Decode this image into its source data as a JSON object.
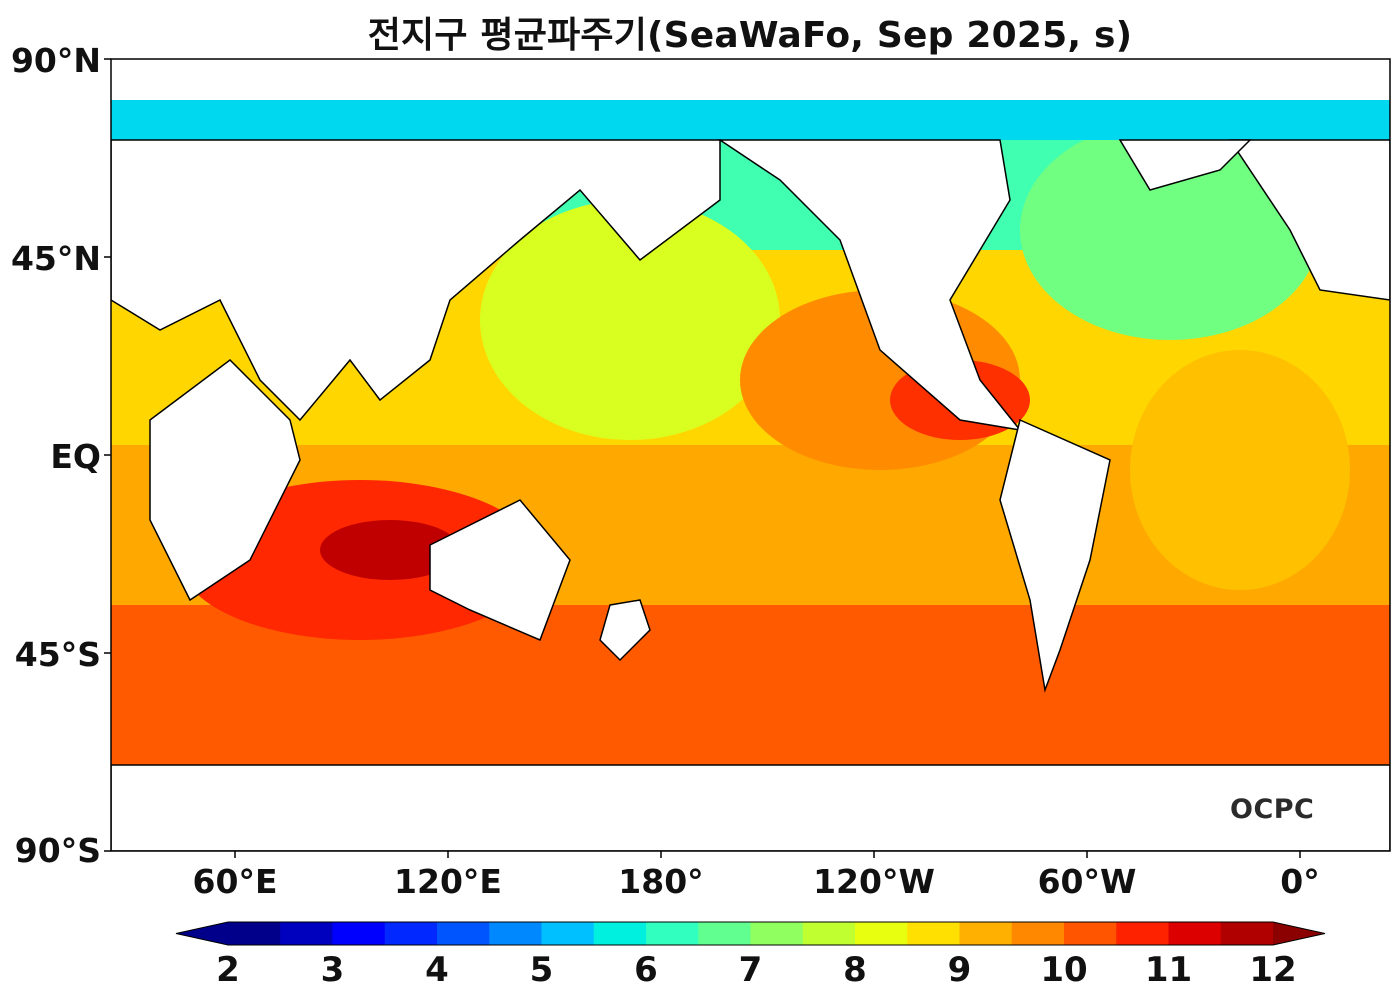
{
  "title": "전지구 평균파주기(SeaWaFo, Sep 2025, s)",
  "logo_text": "OCPC",
  "lat_labels": [
    "90°N",
    "45°N",
    "EQ",
    "45°S",
    "90°S"
  ],
  "lon_labels": [
    "60°E",
    "120°E",
    "180°",
    "120°W",
    "60°W",
    "0°"
  ],
  "colorbar": {
    "ticks": [
      "2",
      "3",
      "4",
      "5",
      "6",
      "7",
      "8",
      "9",
      "10",
      "11",
      "12"
    ],
    "min": 2,
    "max": 12,
    "step": 0.5,
    "extend": "both",
    "colors": [
      "#00008b",
      "#0000bf",
      "#0000ff",
      "#0028ff",
      "#0055ff",
      "#0088ff",
      "#00c0ff",
      "#00f0e0",
      "#30ffc0",
      "#60ff90",
      "#90ff60",
      "#c0ff30",
      "#e8ff10",
      "#ffe000",
      "#ffb000",
      "#ff8800",
      "#ff5500",
      "#ff2200",
      "#dd0000",
      "#b00000"
    ],
    "under_color": "#00008b",
    "over_color": "#8b0000"
  },
  "map": {
    "projection": "PlateCarree",
    "lon_range": [
      25,
      385
    ],
    "lat_range": [
      -90,
      90
    ],
    "variable": "mean wave period",
    "unit": "s",
    "land_color": "#ffffff",
    "coastline_color": "#000000"
  }
}
